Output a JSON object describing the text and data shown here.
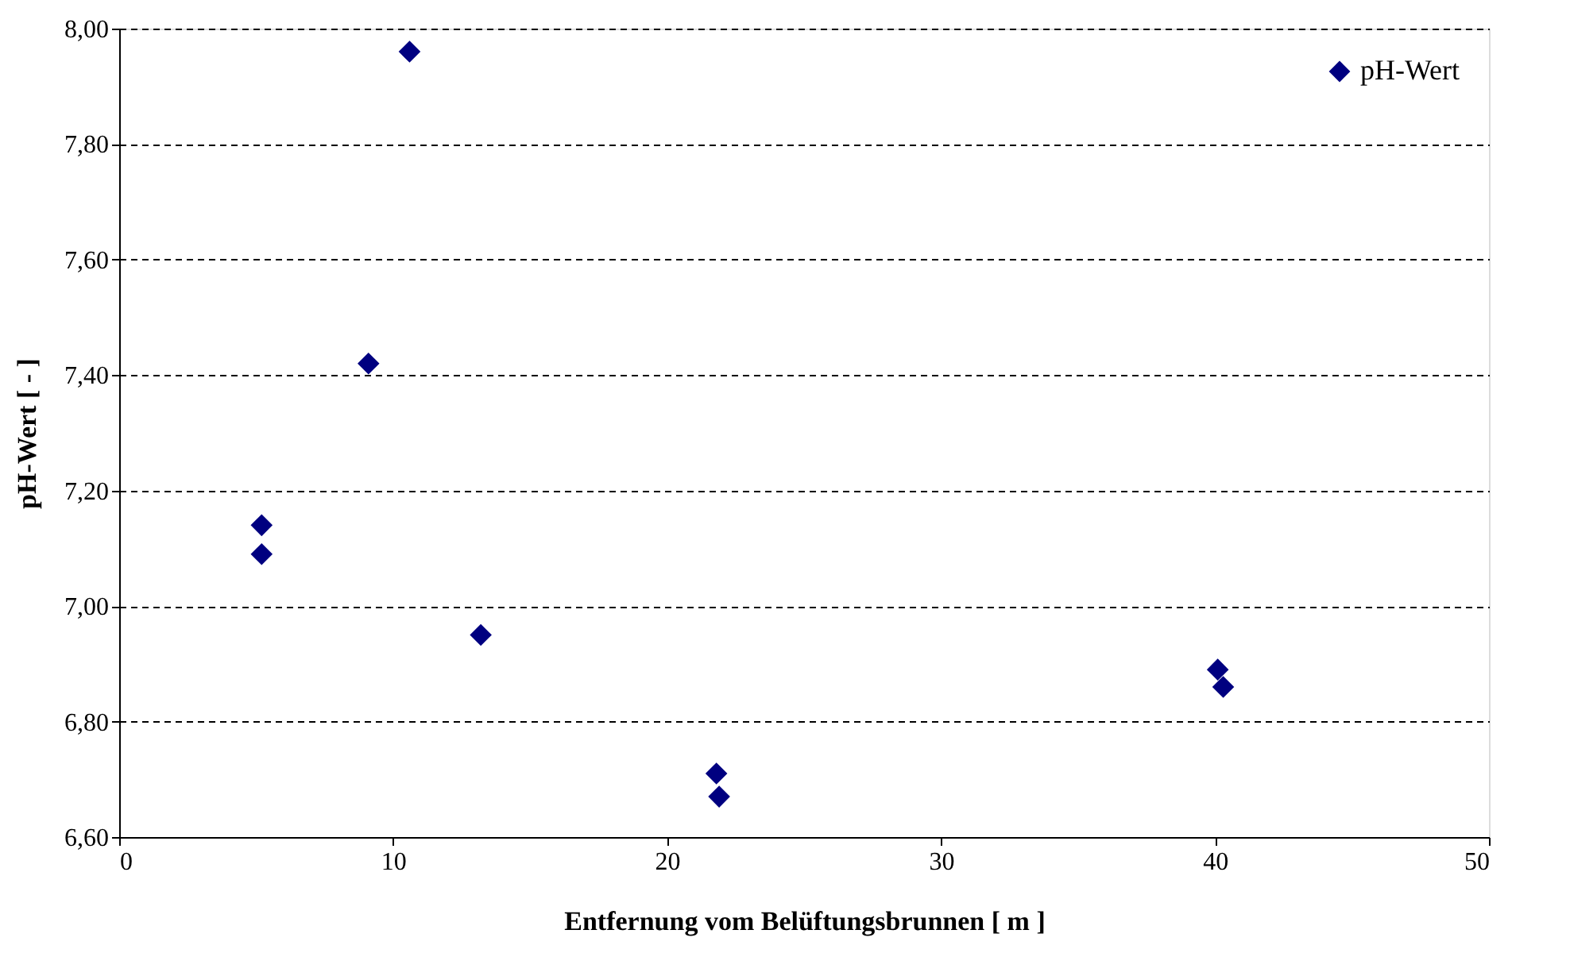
{
  "chart_data": {
    "type": "scatter",
    "xlabel": "Entfernung vom Belüftungsbrunnen [ m ]",
    "ylabel": "pH-Wert [ - ]",
    "xlim": [
      0,
      50
    ],
    "xticks": [
      0,
      10,
      20,
      30,
      40,
      50
    ],
    "ylim": [
      6.6,
      8.0
    ],
    "yticks": [
      {
        "value": 6.6,
        "label": "6,60"
      },
      {
        "value": 6.8,
        "label": "6,80"
      },
      {
        "value": 7.0,
        "label": "7,00"
      },
      {
        "value": 7.2,
        "label": "7,20"
      },
      {
        "value": 7.4,
        "label": "7,40"
      },
      {
        "value": 7.6,
        "label": "7,60"
      },
      {
        "value": 7.8,
        "label": "7,80"
      },
      {
        "value": 8.0,
        "label": "8,00"
      }
    ],
    "grid": "y",
    "legend": "top right",
    "marker": "diamond",
    "series": [
      {
        "name": "pH-Wert",
        "color": "#000080",
        "x": [
          5.2,
          5.2,
          9.1,
          10.6,
          13.2,
          21.8,
          21.9,
          40.1,
          40.3
        ],
        "values": [
          7.14,
          7.09,
          7.42,
          7.96,
          6.95,
          6.71,
          6.67,
          6.89,
          6.86
        ]
      }
    ]
  }
}
